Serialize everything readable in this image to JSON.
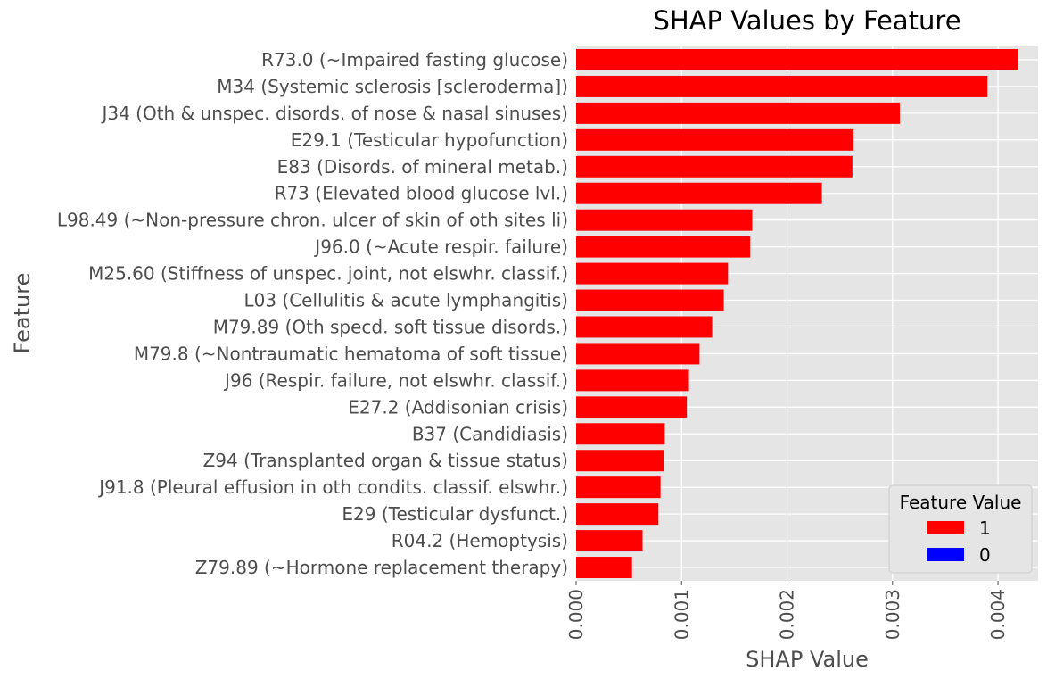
{
  "chart_data": {
    "type": "bar",
    "orientation": "horizontal",
    "title": "SHAP Values by Feature",
    "xlabel": "SHAP Value",
    "ylabel": "Feature",
    "xlim": [
      0,
      0.00438
    ],
    "xticks": [
      0.0,
      0.001,
      0.002,
      0.003,
      0.004
    ],
    "xtick_labels": [
      "0.000",
      "0.001",
      "0.002",
      "0.003",
      "0.004"
    ],
    "grid": true,
    "categories": [
      "R73.0 (~Impaired fasting glucose)",
      "M34 (Systemic sclerosis [scleroderma])",
      "J34 (Oth & unspec. disords. of nose & nasal sinuses)",
      "E29.1 (Testicular hypofunction)",
      "E83 (Disords. of mineral metab.)",
      "R73 (Elevated blood glucose lvl.)",
      "L98.49 (~Non-pressure chron. ulcer of skin of oth sites li)",
      "J96.0 (~Acute respir. failure)",
      "M25.60 (Stiffness of unspec. joint, not elswhr. classif.)",
      "L03 (Cellulitis & acute lymphangitis)",
      "M79.89 (Oth specd. soft tissue disords.)",
      "M79.8 (~Nontraumatic hematoma of soft tissue)",
      "J96 (Respir. failure, not elswhr. classif.)",
      "E27.2 (Addisonian crisis)",
      "B37 (Candidiasis)",
      "Z94 (Transplanted organ & tissue status)",
      "J91.8 (Pleural effusion in oth condits. classif. elswhr.)",
      "E29 (Testicular dysfunct.)",
      "R04.2 (Hemoptysis)",
      "Z79.89 (~Hormone replacement therapy)"
    ],
    "values": [
      0.00419,
      0.0039,
      0.00307,
      0.00263,
      0.00262,
      0.00233,
      0.00167,
      0.00165,
      0.00144,
      0.0014,
      0.00129,
      0.00117,
      0.00107,
      0.00105,
      0.00084,
      0.00083,
      0.0008,
      0.00078,
      0.00063,
      0.00053
    ],
    "feature_values": [
      "1",
      "1",
      "1",
      "1",
      "1",
      "1",
      "1",
      "1",
      "1",
      "1",
      "1",
      "1",
      "1",
      "1",
      "1",
      "1",
      "1",
      "1",
      "1",
      "1"
    ],
    "legend": {
      "title": "Feature Value",
      "placement": "lower-right",
      "entries": [
        {
          "label": "1",
          "color": "#ff0000"
        },
        {
          "label": "0",
          "color": "#0000ff"
        }
      ]
    },
    "colors": {
      "panel_background": "#e5e5e5",
      "grid": "#ffffff",
      "tick_text": "#4d4d4d"
    }
  }
}
